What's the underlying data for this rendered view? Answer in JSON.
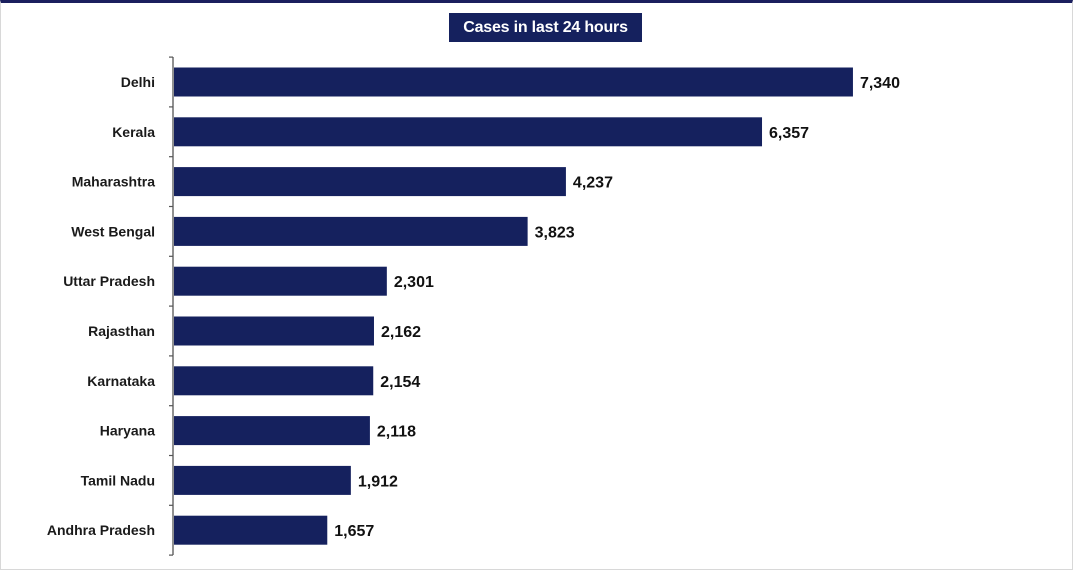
{
  "colors": {
    "bar": "#15215e",
    "title_background": "#15215e",
    "title_text": "#ffffff",
    "axis": "#555555"
  },
  "chart_data": {
    "type": "bar",
    "orientation": "horizontal",
    "title": "Cases in last 24 hours",
    "categories": [
      "Delhi",
      "Kerala",
      "Maharashtra",
      "West Bengal",
      "Uttar Pradesh",
      "Rajasthan",
      "Karnataka",
      "Haryana",
      "Tamil Nadu",
      "Andhra Pradesh"
    ],
    "values": [
      7340,
      6357,
      4237,
      3823,
      2301,
      2162,
      2154,
      2118,
      1912,
      1657
    ],
    "value_labels": [
      "7,340",
      "6,357",
      "4,237",
      "3,823",
      "2,301",
      "2,162",
      "2,154",
      "2,118",
      "1,912",
      "1,657"
    ],
    "xlabel": "",
    "ylabel": "",
    "xlim": [
      0,
      8000
    ],
    "grid": false,
    "legend": "none"
  }
}
